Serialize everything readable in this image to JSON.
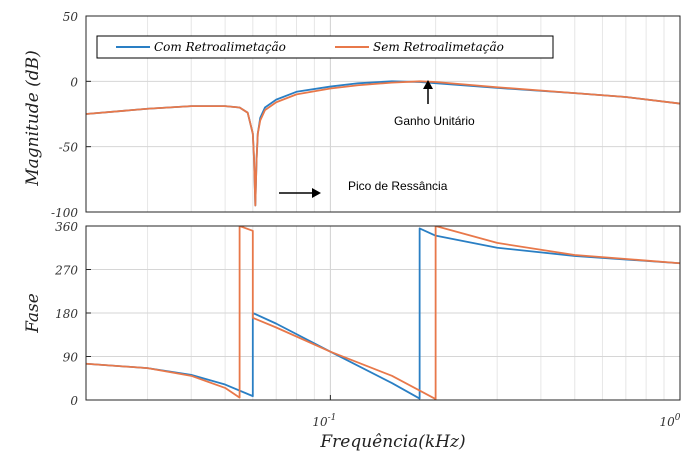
{
  "chart_data": [
    {
      "type": "line",
      "panel": "magnitude",
      "ylabel": "Magnitude (dB)",
      "xscale": "log",
      "xlim": [
        0.02,
        1.0
      ],
      "ylim": [
        -100,
        50
      ],
      "yticks": [
        50,
        0,
        -50,
        -100
      ],
      "ytick_labels": [
        "50",
        "0",
        "-50",
        "-100"
      ],
      "grid": true,
      "legend_position": "top-left",
      "series": [
        {
          "name": "Com Retroalimetação",
          "color": "#2a7fc4",
          "x": [
            0.02,
            0.03,
            0.04,
            0.05,
            0.055,
            0.058,
            0.06,
            0.0605,
            0.061,
            0.0615,
            0.062,
            0.063,
            0.065,
            0.07,
            0.08,
            0.1,
            0.12,
            0.15,
            0.18,
            0.2,
            0.3,
            0.5,
            0.7,
            1.0
          ],
          "y": [
            -25,
            -21,
            -19,
            -19,
            -20,
            -24,
            -40,
            -60,
            -95,
            -60,
            -40,
            -28,
            -20,
            -14,
            -8,
            -4,
            -1.5,
            0,
            -0.5,
            -1.5,
            -5,
            -9,
            -12,
            -17
          ]
        },
        {
          "name": "Sem Retroalimetação",
          "color": "#e8784a",
          "x": [
            0.02,
            0.03,
            0.04,
            0.05,
            0.055,
            0.058,
            0.06,
            0.0605,
            0.061,
            0.0615,
            0.062,
            0.063,
            0.065,
            0.07,
            0.08,
            0.1,
            0.12,
            0.15,
            0.18,
            0.2,
            0.3,
            0.5,
            0.7,
            1.0
          ],
          "y": [
            -25,
            -21,
            -19,
            -19,
            -20,
            -24,
            -40,
            -60,
            -95,
            -60,
            -40,
            -30,
            -22,
            -16,
            -10,
            -5.5,
            -3,
            -1,
            0,
            -0.5,
            -4.5,
            -9,
            -12,
            -17
          ]
        }
      ],
      "annotations": [
        {
          "text": "Ganho Unitário",
          "x": 0.2,
          "y": 0
        },
        {
          "text": "Pico de Ressância",
          "x": 0.061,
          "y": -82
        }
      ]
    },
    {
      "type": "line",
      "panel": "phase",
      "ylabel": "Fase",
      "xlabel": "Frequência(kHz)",
      "xscale": "log",
      "xlim": [
        0.02,
        1.0
      ],
      "ylim": [
        0,
        360
      ],
      "yticks": [
        360,
        270,
        180,
        90,
        0
      ],
      "ytick_labels": [
        "360",
        "270",
        "180",
        "90",
        "0"
      ],
      "xticks": [
        0.1,
        1.0
      ],
      "xtick_labels": [
        {
          "base": "10",
          "exp": "-1"
        },
        {
          "base": "10",
          "exp": "0"
        }
      ],
      "grid": true,
      "series": [
        {
          "name": "Com Retroalimetação",
          "color": "#2a7fc4",
          "x": [
            0.02,
            0.03,
            0.04,
            0.05,
            0.06,
            0.06,
            0.07,
            0.1,
            0.15,
            0.18,
            0.18,
            0.2,
            0.3,
            0.5,
            1.0
          ],
          "y": [
            75,
            66,
            52,
            32,
            8,
            180,
            158,
            100,
            35,
            3,
            355,
            340,
            315,
            298,
            283
          ]
        },
        {
          "name": "Sem Retroalimetação",
          "color": "#e8784a",
          "x": [
            0.02,
            0.03,
            0.04,
            0.05,
            0.055,
            0.055,
            0.06,
            0.06,
            0.07,
            0.1,
            0.15,
            0.2,
            0.2,
            0.3,
            0.5,
            1.0
          ],
          "y": [
            75,
            66,
            50,
            25,
            5,
            360,
            350,
            170,
            150,
            100,
            50,
            2,
            360,
            325,
            300,
            283
          ]
        }
      ]
    }
  ]
}
